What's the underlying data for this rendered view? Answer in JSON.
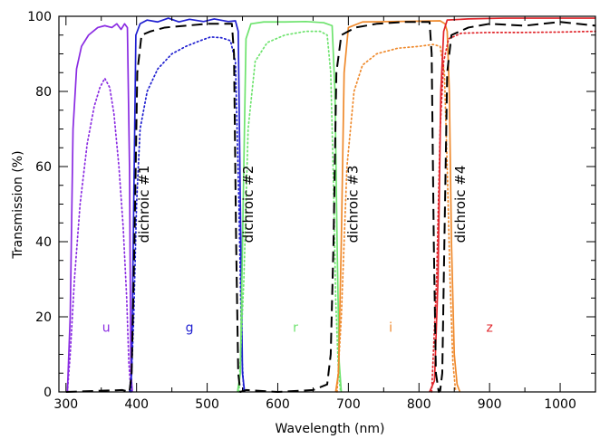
{
  "chart_data": {
    "type": "line",
    "title": "",
    "xlabel": "Wavelength (nm)",
    "ylabel": "Transmission (%)",
    "xlim": [
      290,
      1050
    ],
    "ylim": [
      0,
      100
    ],
    "xticks": [
      300,
      400,
      500,
      600,
      700,
      800,
      900,
      1000
    ],
    "yticks": [
      0,
      20,
      40,
      60,
      80,
      100
    ],
    "grid": false,
    "band_labels": [
      {
        "text": "u",
        "x": 357,
        "y": 16,
        "color": "#8a2be2"
      },
      {
        "text": "g",
        "x": 475,
        "y": 16,
        "color": "#1f1fd0"
      },
      {
        "text": "r",
        "x": 625,
        "y": 16,
        "color": "#6ee36e"
      },
      {
        "text": "i",
        "x": 760,
        "y": 16,
        "color": "#ef8a2d"
      },
      {
        "text": "z",
        "x": 900,
        "y": 16,
        "color": "#e0242a"
      }
    ],
    "dichroic_labels": [
      {
        "text": "dichroic #1",
        "x": 417,
        "y": 50
      },
      {
        "text": "dichroic #2",
        "x": 565,
        "y": 50
      },
      {
        "text": "dichroic #3",
        "x": 713,
        "y": 50
      },
      {
        "text": "dichroic #4",
        "x": 865,
        "y": 50
      }
    ],
    "series": [
      {
        "color": "#8a2be2",
        "style": "solid",
        "points": [
          [
            302,
            0
          ],
          [
            306,
            20
          ],
          [
            310,
            70
          ],
          [
            315,
            86
          ],
          [
            322,
            92
          ],
          [
            332,
            95
          ],
          [
            345,
            97
          ],
          [
            355,
            97.5
          ],
          [
            365,
            97
          ],
          [
            372,
            98
          ],
          [
            378,
            96.5
          ],
          [
            383,
            98
          ],
          [
            387,
            97
          ],
          [
            390,
            60
          ],
          [
            392,
            5
          ],
          [
            394,
            0
          ]
        ]
      },
      {
        "color": "#8a2be2",
        "style": "dotted",
        "points": [
          [
            302,
            0
          ],
          [
            306,
            10
          ],
          [
            312,
            30
          ],
          [
            320,
            50
          ],
          [
            330,
            66
          ],
          [
            340,
            76
          ],
          [
            348,
            81
          ],
          [
            355,
            83.5
          ],
          [
            362,
            81
          ],
          [
            368,
            74
          ],
          [
            375,
            60
          ],
          [
            381,
            44
          ],
          [
            386,
            25
          ],
          [
            389,
            8
          ],
          [
            392,
            0
          ]
        ]
      },
      {
        "color": "#1f1fd0",
        "style": "solid",
        "points": [
          [
            390,
            0
          ],
          [
            393,
            5
          ],
          [
            396,
            50
          ],
          [
            399,
            95
          ],
          [
            405,
            98
          ],
          [
            415,
            99
          ],
          [
            430,
            98.5
          ],
          [
            445,
            99.5
          ],
          [
            460,
            98.5
          ],
          [
            475,
            99.2
          ],
          [
            495,
            98.6
          ],
          [
            510,
            99.3
          ],
          [
            530,
            98.6
          ],
          [
            540,
            98.8
          ],
          [
            544,
            96
          ],
          [
            547,
            50
          ],
          [
            550,
            5
          ],
          [
            553,
            0
          ]
        ]
      },
      {
        "color": "#1f1fd0",
        "style": "dotted",
        "points": [
          [
            392,
            0
          ],
          [
            396,
            20
          ],
          [
            400,
            50
          ],
          [
            405,
            70
          ],
          [
            415,
            80
          ],
          [
            430,
            86
          ],
          [
            450,
            90
          ],
          [
            470,
            92
          ],
          [
            490,
            93.5
          ],
          [
            505,
            94.5
          ],
          [
            520,
            94.3
          ],
          [
            533,
            93.5
          ],
          [
            540,
            88
          ],
          [
            545,
            50
          ],
          [
            549,
            10
          ],
          [
            552,
            0
          ]
        ]
      },
      {
        "color": "#6ee36e",
        "style": "solid",
        "points": [
          [
            543,
            0
          ],
          [
            547,
            5
          ],
          [
            551,
            50
          ],
          [
            555,
            94
          ],
          [
            562,
            98
          ],
          [
            580,
            98.5
          ],
          [
            610,
            98.5
          ],
          [
            640,
            98.6
          ],
          [
            665,
            98.3
          ],
          [
            677,
            97.5
          ],
          [
            681,
            80
          ],
          [
            684,
            40
          ],
          [
            687,
            8
          ],
          [
            690,
            0
          ]
        ]
      },
      {
        "color": "#6ee36e",
        "style": "dotted",
        "points": [
          [
            545,
            0
          ],
          [
            552,
            30
          ],
          [
            558,
            70
          ],
          [
            568,
            88
          ],
          [
            585,
            93
          ],
          [
            610,
            95
          ],
          [
            640,
            96
          ],
          [
            660,
            96
          ],
          [
            670,
            95
          ],
          [
            675,
            85
          ],
          [
            679,
            55
          ],
          [
            682,
            25
          ],
          [
            686,
            5
          ],
          [
            689,
            0
          ]
        ]
      },
      {
        "color": "#ef8a2d",
        "style": "solid",
        "points": [
          [
            682,
            0
          ],
          [
            686,
            5
          ],
          [
            690,
            40
          ],
          [
            694,
            85
          ],
          [
            700,
            97
          ],
          [
            720,
            98.5
          ],
          [
            760,
            98.6
          ],
          [
            800,
            98.7
          ],
          [
            830,
            98.8
          ],
          [
            837,
            98
          ],
          [
            840,
            96
          ],
          [
            843,
            80
          ],
          [
            846,
            40
          ],
          [
            850,
            10
          ],
          [
            854,
            2
          ],
          [
            858,
            0
          ]
        ]
      },
      {
        "color": "#ef8a2d",
        "style": "dotted",
        "points": [
          [
            684,
            0
          ],
          [
            690,
            20
          ],
          [
            698,
            60
          ],
          [
            708,
            80
          ],
          [
            720,
            87
          ],
          [
            740,
            90
          ],
          [
            770,
            91.5
          ],
          [
            800,
            92
          ],
          [
            820,
            92.5
          ],
          [
            830,
            92
          ],
          [
            836,
            85
          ],
          [
            840,
            60
          ],
          [
            844,
            30
          ],
          [
            848,
            8
          ],
          [
            852,
            0
          ]
        ]
      },
      {
        "color": "#e0242a",
        "style": "solid",
        "points": [
          [
            815,
            0
          ],
          [
            822,
            3
          ],
          [
            827,
            30
          ],
          [
            831,
            80
          ],
          [
            835,
            96
          ],
          [
            840,
            99
          ],
          [
            870,
            99.3
          ],
          [
            920,
            99.5
          ],
          [
            980,
            99.5
          ],
          [
            1050,
            99.5
          ]
        ]
      },
      {
        "color": "#e0242a",
        "style": "dotted",
        "points": [
          [
            818,
            0
          ],
          [
            825,
            30
          ],
          [
            830,
            70
          ],
          [
            835,
            88
          ],
          [
            842,
            94
          ],
          [
            860,
            95.5
          ],
          [
            900,
            95.7
          ],
          [
            950,
            95.7
          ],
          [
            1000,
            95.8
          ],
          [
            1050,
            96
          ]
        ]
      },
      {
        "color": "#000000",
        "style": "dashed",
        "points": [
          [
            300,
            0
          ],
          [
            380,
            0.5
          ],
          [
            390,
            0
          ],
          [
            393,
            5
          ],
          [
            397,
            40
          ],
          [
            401,
            85
          ],
          [
            407,
            95
          ],
          [
            420,
            96
          ],
          [
            440,
            97
          ],
          [
            470,
            97.5
          ],
          [
            500,
            98
          ],
          [
            535,
            98
          ],
          [
            538,
            90
          ],
          [
            541,
            40
          ],
          [
            544,
            5
          ],
          [
            547,
            0
          ],
          [
            555,
            0.5
          ],
          [
            600,
            0
          ],
          [
            650,
            0.5
          ],
          [
            670,
            2
          ],
          [
            675,
            10
          ],
          [
            679,
            40
          ],
          [
            683,
            85
          ],
          [
            690,
            95
          ],
          [
            710,
            97
          ],
          [
            740,
            98
          ],
          [
            780,
            98.5
          ],
          [
            815,
            98.5
          ],
          [
            818,
            90
          ],
          [
            821,
            40
          ],
          [
            824,
            5
          ],
          [
            828,
            0
          ],
          [
            830,
            0.3
          ],
          [
            833,
            5
          ],
          [
            836,
            40
          ],
          [
            840,
            85
          ],
          [
            846,
            95
          ],
          [
            870,
            97
          ],
          [
            900,
            98
          ],
          [
            950,
            97.5
          ],
          [
            1000,
            98.5
          ],
          [
            1050,
            97.5
          ]
        ]
      }
    ]
  }
}
